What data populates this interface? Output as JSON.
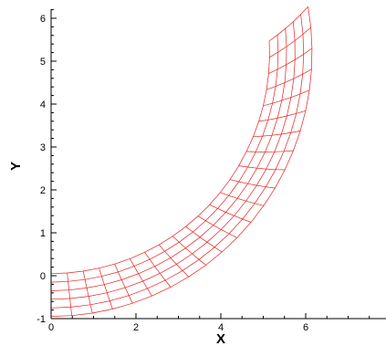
{
  "chart_data": {
    "type": "mesh",
    "title": "",
    "xlabel": "X",
    "ylabel": "Y",
    "xlim": [
      0,
      7.8
    ],
    "ylim": [
      -1,
      6.3
    ],
    "x_ticks": [
      0,
      2,
      4,
      6
    ],
    "y_ticks": [
      -1,
      0,
      1,
      2,
      3,
      4,
      5,
      6
    ],
    "x_tick_labels": [
      "0",
      "2",
      "4",
      "6"
    ],
    "y_tick_labels": [
      "-1",
      "0",
      "1",
      "2",
      "3",
      "4",
      "5",
      "6"
    ],
    "mesh_color": "#e8211f",
    "grid": false,
    "mesh": {
      "description_of_geometry": "quarter annulus, center (0, 5.2)",
      "center": [
        0,
        5.2
      ],
      "inner_radius": 5.15,
      "outer_radius": 6.15,
      "radial_lines": 6,
      "angular_lines": 23,
      "angle_start_deg": -90,
      "angle_end_deg": 3,
      "outer_tail_angle_deg": 10
    }
  }
}
